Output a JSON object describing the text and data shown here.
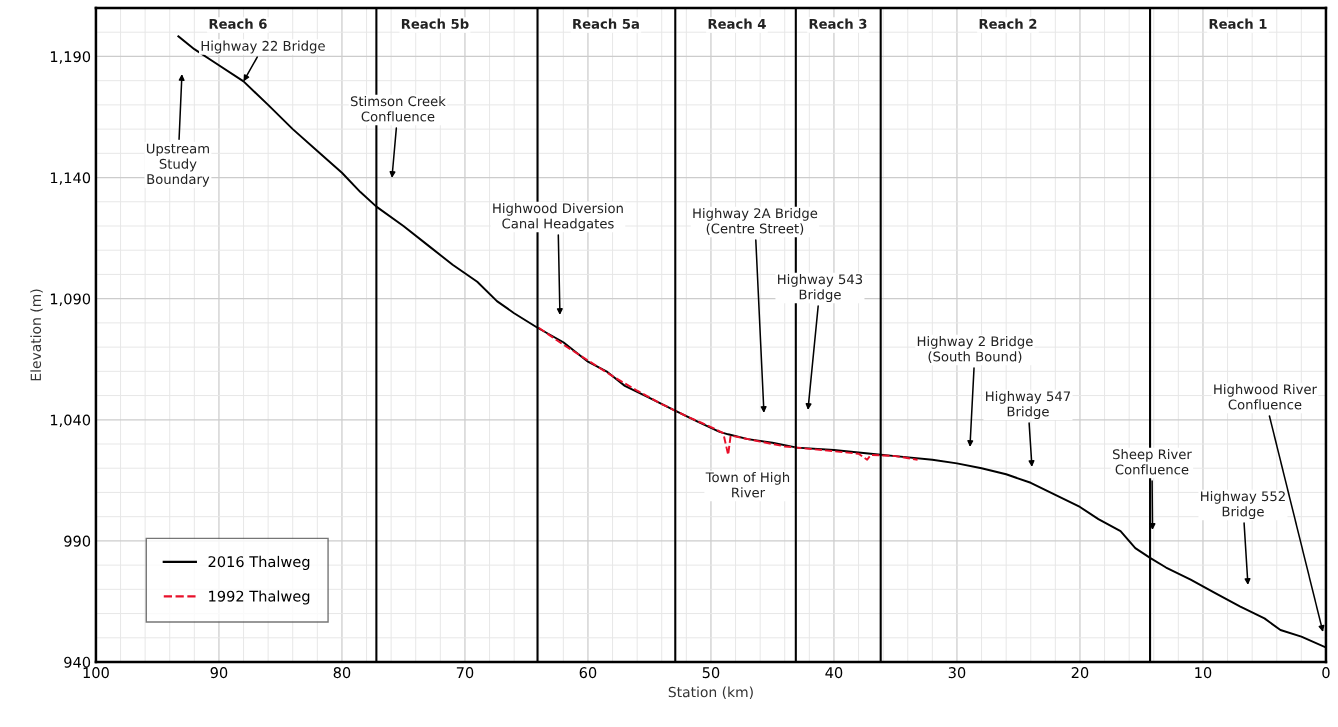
{
  "chart_data": {
    "type": "line",
    "xlabel": "Station (km)",
    "ylabel": "Elevation (m)",
    "xlim": [
      100,
      0
    ],
    "xticks": [
      100,
      90,
      80,
      70,
      60,
      50,
      40,
      30,
      20,
      10,
      0
    ],
    "ylim": [
      940,
      1210
    ],
    "yticks": [
      940,
      990,
      {
        "value": 1040,
        "label": "1,040"
      },
      {
        "value": 1090,
        "label": "1,090"
      },
      {
        "value": 1140,
        "label": "1,140"
      },
      {
        "value": 1190,
        "label": "1,190"
      }
    ],
    "grid": true,
    "legend": "bottom left",
    "series": [
      {
        "name": "2016 Thalweg",
        "color": "#000000",
        "line_style": "solid",
        "x": [
          93.3,
          92.0,
          90.5,
          88.0,
          86.0,
          84.0,
          82.0,
          80.0,
          78.5,
          77.2,
          75.0,
          73.0,
          71.0,
          69.0,
          67.4,
          66.0,
          64.1,
          62.0,
          60.0,
          58.5,
          57.0,
          55.0,
          53.0,
          51.0,
          49.3,
          48.6,
          47.0,
          45.0,
          43.0,
          40.0,
          37.0,
          35.0,
          32.0,
          30.0,
          28.0,
          26.0,
          24.0,
          22.0,
          20.0,
          18.5,
          16.7,
          15.5,
          14.3,
          13.0,
          11.0,
          9.0,
          7.0,
          5.0,
          3.7,
          2.0,
          0.0
        ],
        "values": [
          1198.3,
          1193,
          1188,
          1179.7,
          1170,
          1160,
          1151,
          1142,
          1134,
          1128,
          1120,
          1112,
          1104,
          1097,
          1089,
          1084,
          1078,
          1072,
          1064,
          1060,
          1054,
          1049,
          1044,
          1039,
          1035,
          1034,
          1032,
          1030.5,
          1028.5,
          1027.5,
          1026,
          1025,
          1023.5,
          1022,
          1020,
          1017.5,
          1014,
          1009,
          1004,
          999,
          994,
          987,
          983,
          979,
          974,
          968.4,
          963,
          958,
          953.2,
          950.5,
          946
        ]
      },
      {
        "name": "1992 Thalweg",
        "color": "#e8102a",
        "line_style": "dashed",
        "x": [
          64.0,
          62.0,
          60.0,
          58.0,
          56.0,
          54.0,
          52.0,
          50.0,
          49.0,
          48.6,
          48.4,
          46.0,
          44.0,
          42.0,
          40.0,
          38.0,
          37.3,
          37.0,
          35.0,
          33.2
        ],
        "values": [
          1078,
          1071,
          1064.5,
          1058,
          1052,
          1046.5,
          1041.5,
          1037,
          1034.5,
          1025.5,
          1033.5,
          1031,
          1029,
          1028,
          1027,
          1026,
          1023.5,
          1025.5,
          1025,
          1023.5
        ]
      }
    ],
    "ref_lines": [
      {
        "axis": "x",
        "value": 77.2,
        "color": "#000000",
        "line_style": "solid"
      },
      {
        "axis": "x",
        "value": 64.1,
        "color": "#000000",
        "line_style": "solid"
      },
      {
        "axis": "x",
        "value": 52.9,
        "color": "#000000",
        "line_style": "solid"
      },
      {
        "axis": "x",
        "value": 43.1,
        "color": "#000000",
        "line_style": "solid"
      },
      {
        "axis": "x",
        "value": 36.2,
        "color": "#000000",
        "line_style": "solid"
      },
      {
        "axis": "x",
        "value": 14.3,
        "color": "#000000",
        "line_style": "solid"
      }
    ],
    "annotations": [
      "Reach 6",
      "Reach 5b",
      "Reach 5a",
      "Reach 4",
      "Reach 3",
      "Reach 2",
      "Reach 1",
      "Upstream\nStudy\nBoundary",
      {
        "text": "Highway 22 Bridge",
        "x": 88.0,
        "y": 1179.7
      },
      "Stimson Creek\nConfluence",
      "Highwood Diversion\nCanal Headgates",
      "Highway 2A Bridge\n(Centre Street)",
      "Highway 543\nBridge",
      "Town of High\nRiver",
      "Highway 2 Bridge\n(South Bound)",
      "Highway 547\nBridge",
      {
        "text": "Sheep River\nConfluence",
        "x": 14.1,
        "y": 994.5
      },
      "Highway 552\nBridge",
      "Highwood River\nConfluence"
    ]
  }
}
